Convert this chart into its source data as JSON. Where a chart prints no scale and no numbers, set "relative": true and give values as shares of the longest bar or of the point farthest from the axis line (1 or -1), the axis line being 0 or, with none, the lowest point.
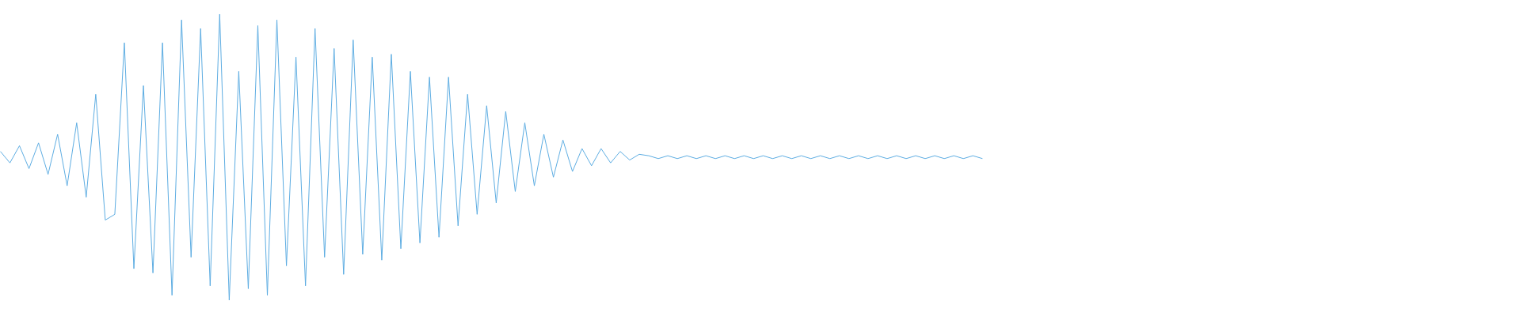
{
  "chart_data": {
    "type": "line",
    "relative": true,
    "color": "#5dade2",
    "categories": [
      null,
      null,
      null,
      null,
      null,
      null,
      null,
      null,
      null,
      null,
      null,
      null,
      null,
      null,
      null,
      null,
      null,
      null,
      null,
      null,
      null,
      null,
      null,
      null,
      null,
      null,
      null,
      null,
      null,
      null,
      null,
      null,
      null,
      null,
      null,
      null,
      null,
      null,
      null,
      null,
      null,
      null,
      null,
      null,
      null,
      null,
      null,
      null,
      null,
      null,
      null,
      null,
      null,
      null,
      null,
      null,
      null,
      null,
      null,
      null,
      null,
      null,
      null,
      null,
      null,
      null,
      null,
      null,
      null,
      null,
      null,
      null,
      null,
      null,
      null,
      null,
      null,
      null,
      null,
      null,
      null,
      null,
      null,
      null,
      null,
      null,
      null,
      null,
      null,
      null,
      null,
      null,
      null,
      null,
      null,
      null,
      null,
      null,
      null,
      null,
      null,
      null,
      null,
      null
    ],
    "values": [
      0.52,
      0.48,
      0.54,
      0.46,
      0.55,
      0.44,
      0.58,
      0.4,
      0.62,
      0.36,
      0.72,
      0.28,
      0.3,
      0.9,
      0.11,
      0.75,
      0.095,
      0.9,
      0.017,
      0.98,
      0.15,
      0.95,
      0.05,
      1.0,
      0.0,
      0.8,
      0.04,
      0.96,
      0.017,
      0.98,
      0.12,
      0.85,
      0.05,
      0.95,
      0.15,
      0.88,
      0.09,
      0.91,
      0.16,
      0.85,
      0.14,
      0.86,
      0.18,
      0.8,
      0.2,
      0.78,
      0.22,
      0.78,
      0.26,
      0.72,
      0.3,
      0.68,
      0.34,
      0.66,
      0.38,
      0.62,
      0.4,
      0.58,
      0.43,
      0.56,
      0.45,
      0.53,
      0.47,
      0.53,
      0.48,
      0.52,
      0.49,
      0.51,
      0.505,
      0.495,
      0.505,
      0.495,
      0.505,
      0.495,
      0.505,
      0.495,
      0.505,
      0.495,
      0.505,
      0.495,
      0.505,
      0.495,
      0.505,
      0.495,
      0.505,
      0.495,
      0.505,
      0.495,
      0.505,
      0.495,
      0.505,
      0.495,
      0.505,
      0.495,
      0.505,
      0.495,
      0.505,
      0.495,
      0.505,
      0.495,
      0.505,
      0.495,
      0.505,
      0.495
    ]
  }
}
